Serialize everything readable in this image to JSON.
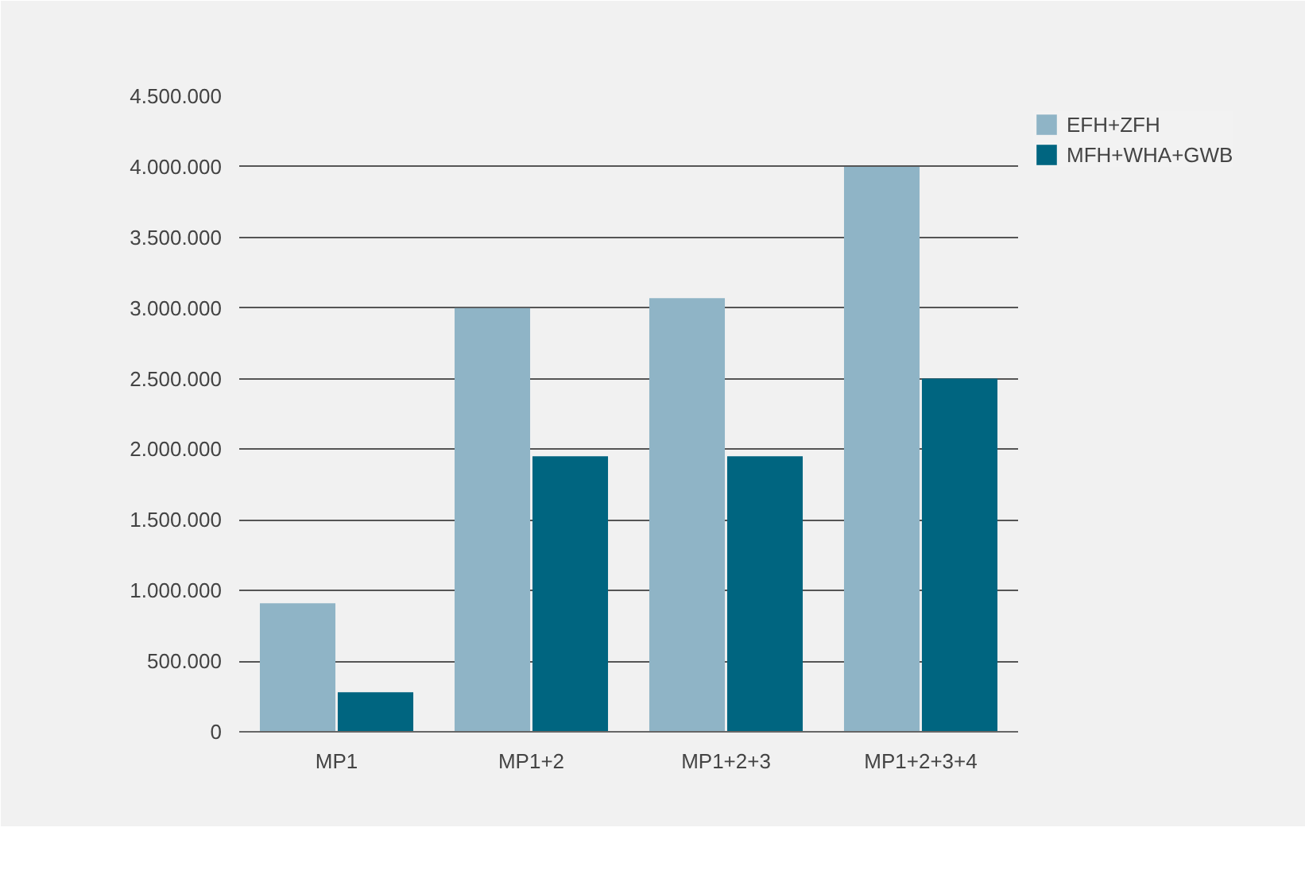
{
  "chart_data": {
    "type": "bar",
    "categories": [
      "MP1",
      "MP1+2",
      "MP1+2+3",
      "MP1+2+3+4"
    ],
    "series": [
      {
        "name": "EFH+ZFH",
        "color": "#8fb4c6",
        "values": [
          910000,
          3000000,
          3070000,
          4000000
        ]
      },
      {
        "name": "MFH+WHA+GWB",
        "color": "#006580",
        "values": [
          280000,
          1950000,
          1950000,
          2500000
        ]
      }
    ],
    "ylim": [
      0,
      4500000
    ],
    "yticks": [
      {
        "value": 0,
        "label": "0"
      },
      {
        "value": 500000,
        "label": "500.000"
      },
      {
        "value": 1000000,
        "label": "1.000.000"
      },
      {
        "value": 1500000,
        "label": "1.500.000"
      },
      {
        "value": 2000000,
        "label": "2.000.000"
      },
      {
        "value": 2500000,
        "label": "2.500.000"
      },
      {
        "value": 3000000,
        "label": "3.000.000"
      },
      {
        "value": 3500000,
        "label": "3.500.000"
      },
      {
        "value": 4000000,
        "label": "4.000.000"
      },
      {
        "value": 4500000,
        "label": "4.500.000"
      }
    ],
    "grid": "y",
    "legend": "top right"
  }
}
